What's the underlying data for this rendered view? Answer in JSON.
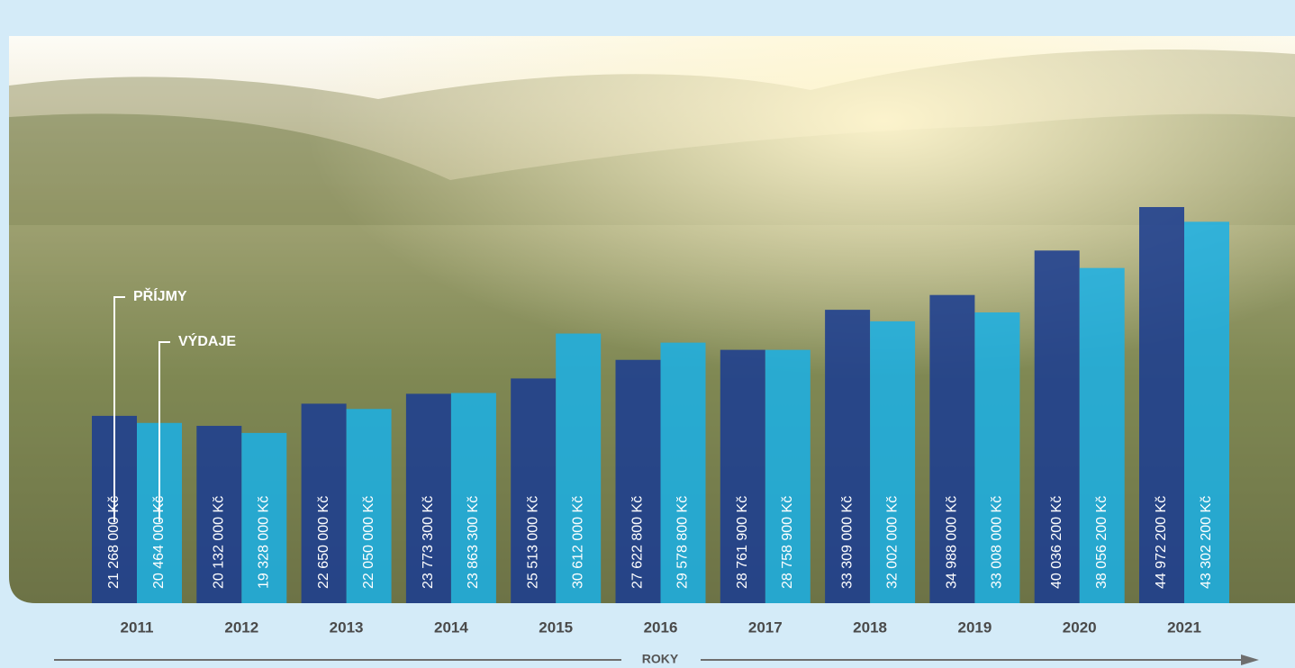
{
  "chart_data": {
    "type": "bar",
    "x_label": "ROKY",
    "categories": [
      "2011",
      "2012",
      "2013",
      "2014",
      "2015",
      "2016",
      "2017",
      "2018",
      "2019",
      "2020",
      "2021"
    ],
    "series": [
      {
        "name": "PŘÍJMY",
        "color": "#1c3d8f",
        "values": [
          21268000,
          20132000,
          22650000,
          23773300,
          25513000,
          27622800,
          28761900,
          33309000,
          34988000,
          40036200,
          44972200
        ],
        "value_labels": [
          "21 268 000 Kč",
          "20 132 000 Kč",
          "22 650 000 Kč",
          "23 773 300 Kč",
          "25 513 000 Kč",
          "27 622 800 Kč",
          "28 761 900 Kč",
          "33 309 000 Kč",
          "34 988 000 Kč",
          "40 036 200 Kč",
          "44 972 200 Kč"
        ]
      },
      {
        "name": "VÝDAJE",
        "color": "#1ab0e6",
        "values": [
          20464000,
          19328000,
          22050000,
          23863300,
          30612000,
          29578800,
          28758900,
          32002000,
          33008000,
          38056200,
          43302200
        ],
        "value_labels": [
          "20 464 000 Kč",
          "19 328 000 Kč",
          "22 050 000 Kč",
          "23 863 300 Kč",
          "30 612 000 Kč",
          "29 578 800 Kč",
          "28 758 900 Kč",
          "32 002 000 Kč",
          "33 008 000 Kč",
          "38 056 200 Kč",
          "43 302 200 Kč"
        ]
      }
    ]
  }
}
